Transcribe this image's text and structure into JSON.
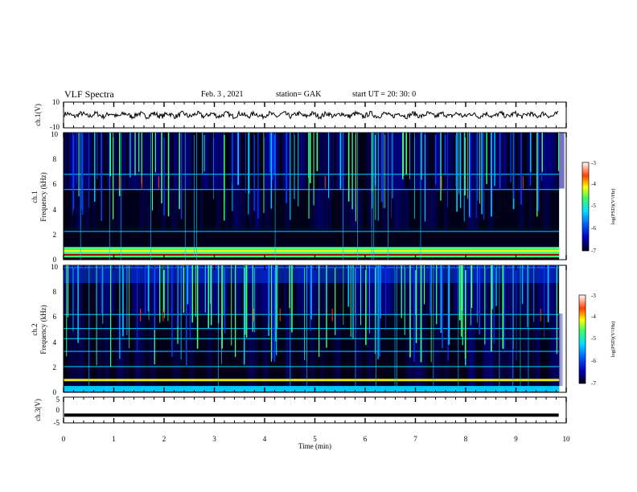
{
  "header": {
    "title": "VLF Spectra",
    "date": "Feb. 3  , 2021",
    "station": "station= GAK",
    "start": "start  UT =   20: 30: 0"
  },
  "chart_data": [
    {
      "type": "line",
      "title": "",
      "ylabel": "ch.1(V)",
      "xlim": [
        0,
        10
      ],
      "ylim": [
        -10,
        10
      ],
      "yticks": [
        "10",
        "-10"
      ],
      "series": [
        {
          "mean": 0,
          "amplitude_approx": 3
        }
      ]
    },
    {
      "type": "heatmap",
      "channel": "ch.1",
      "ylabel": "Frequency  (kHz)",
      "xlim": [
        0,
        9.85
      ],
      "ylim": [
        0,
        10
      ],
      "yticks": [
        "0",
        "2",
        "4",
        "6",
        "8",
        "10"
      ],
      "colorbar": {
        "label": "log(PSD)(V²/Hz)",
        "range": [
          -7,
          -3
        ],
        "ticks": [
          "-3",
          "-4",
          "-5",
          "-6",
          "-7"
        ]
      },
      "bands_khz": [
        0.3,
        0.6,
        0.9,
        2.2,
        5.5,
        6.7
      ],
      "colors": [
        "#000018",
        "#00008a",
        "#0040ff",
        "#00c8ff",
        "#40ff80",
        "#ffff00",
        "#ff4000",
        "#a00000"
      ]
    },
    {
      "type": "heatmap",
      "channel": "ch.2",
      "ylabel": "Frequency  (kHz)",
      "xlim": [
        0,
        9.85
      ],
      "ylim": [
        0,
        10
      ],
      "yticks": [
        "0",
        "2",
        "4",
        "6",
        "8",
        "10"
      ],
      "colorbar": {
        "label": "log(PSD)(V²/Hz)",
        "range": [
          -7,
          -3
        ],
        "ticks": [
          "-3",
          "-4",
          "-5",
          "-6",
          "-7"
        ]
      },
      "bands_khz": [
        0.4,
        1.0,
        2.0,
        3.2,
        4.2,
        5.0,
        6.1,
        9.8
      ],
      "colors": [
        "#000018",
        "#00008a",
        "#0040ff",
        "#00c8ff",
        "#40ff80",
        "#ffff00",
        "#ff4000",
        "#a00000"
      ]
    },
    {
      "type": "line",
      "title": "",
      "ylabel": "ch.3(V)",
      "xlim": [
        0,
        10
      ],
      "ylim": [
        -5,
        5
      ],
      "yticks": [
        "5",
        "0",
        "-5"
      ],
      "series": [
        {
          "value": -2
        }
      ]
    }
  ],
  "xaxis": {
    "label": "Time  (min)",
    "ticks": [
      "0",
      "1",
      "2",
      "3",
      "4",
      "5",
      "6",
      "7",
      "8",
      "9",
      "10"
    ]
  }
}
